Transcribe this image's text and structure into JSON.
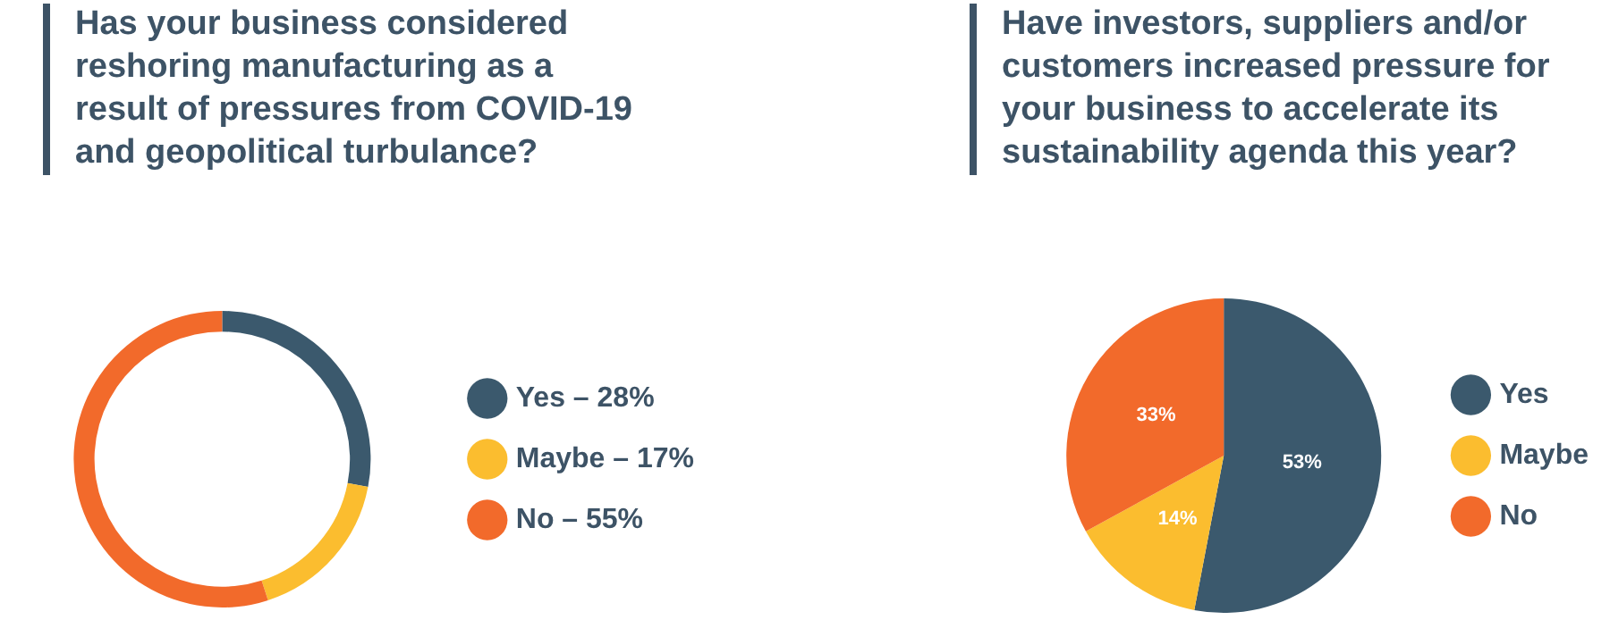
{
  "chart_data": [
    {
      "type": "donut",
      "title": "Has your business considered reshoring manufacturing as a result of pressures from COVID-19 and geopolitical turbulance?",
      "categories": [
        "Yes – 28%",
        "Maybe – 17%",
        "No – 55%"
      ],
      "values": [
        28,
        17,
        55
      ],
      "colors": [
        "#3b596d",
        "#fbbd2f",
        "#f26a2b"
      ],
      "legend": "right"
    },
    {
      "type": "pie",
      "title": "Have investors, suppliers and/or customers increased pressure for your business to accelerate its sustainability agenda this year?",
      "categories": [
        "Yes",
        "Maybe",
        "No"
      ],
      "values": [
        53,
        14,
        33
      ],
      "colors": [
        "#3b596d",
        "#fbbd2f",
        "#f26a2b"
      ],
      "value_labels": [
        "53%",
        "14%",
        "33%"
      ],
      "legend": "right"
    }
  ]
}
